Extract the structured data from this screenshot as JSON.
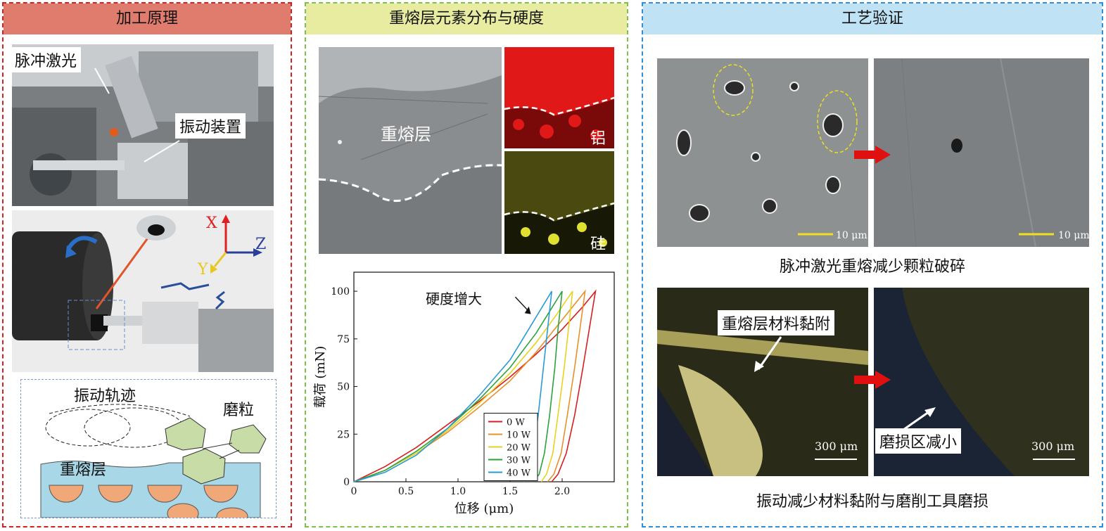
{
  "panels": {
    "left": {
      "title": "加工原理",
      "photo_labels": {
        "laser": "脉冲激光",
        "vibration_device": "振动装置"
      },
      "axes": {
        "x": "X",
        "y": "Y",
        "z": "Z"
      },
      "sketch": {
        "trajectory": "振动轨迹",
        "grain": "磨粒",
        "remelt_layer": "重熔层"
      }
    },
    "middle": {
      "title": "重熔层元素分布与硬度",
      "sem_label": "重熔层",
      "map_labels": {
        "aluminum": "铝",
        "silicon": "硅"
      },
      "chart_annotation": "硬度增大"
    },
    "right": {
      "title": "工艺验证",
      "caption_top": "脉冲激光重熔减少颗粒破碎",
      "caption_bottom": "振动减少材料黏附与磨削工具磨损",
      "scale_sem": "10 μm",
      "scale_optical": "300 μm",
      "label_adhesion": "重熔层材料黏附",
      "label_wear": "磨损区减小"
    }
  },
  "colors": {
    "red": "#d62020",
    "orange": "#e8902a",
    "yellow": "#e8d21e",
    "green": "#2ea23a",
    "blue": "#2a9ad6"
  },
  "chart_data": {
    "type": "line",
    "xlabel": "位移 (μm)",
    "ylabel": "载荷 (mN)",
    "xlim": [
      0,
      2.5
    ],
    "ylim": [
      0,
      110
    ],
    "xticks": [
      "0",
      "0.5",
      "1.0",
      "1.5",
      "2.0"
    ],
    "yticks": [
      "0",
      "25",
      "50",
      "75",
      "100"
    ],
    "legend_position": "bottom-right",
    "series": [
      {
        "name": "0 W",
        "color": "#d62020",
        "loading": [
          [
            0,
            0
          ],
          [
            0.3,
            8
          ],
          [
            0.6,
            18
          ],
          [
            0.9,
            30
          ],
          [
            1.2,
            42
          ],
          [
            1.5,
            55
          ],
          [
            1.75,
            67
          ],
          [
            2.0,
            80
          ],
          [
            2.2,
            92
          ],
          [
            2.32,
            100
          ]
        ],
        "unloading": [
          [
            2.32,
            100
          ],
          [
            2.26,
            80
          ],
          [
            2.2,
            60
          ],
          [
            2.12,
            35
          ],
          [
            2.04,
            15
          ],
          [
            1.96,
            4
          ],
          [
            1.9,
            0
          ]
        ]
      },
      {
        "name": "10 W",
        "color": "#e8902a",
        "loading": [
          [
            0,
            0
          ],
          [
            0.3,
            6
          ],
          [
            0.6,
            15
          ],
          [
            0.9,
            26
          ],
          [
            1.2,
            39
          ],
          [
            1.5,
            53
          ],
          [
            1.75,
            68
          ],
          [
            2.0,
            85
          ],
          [
            2.22,
            100
          ]
        ],
        "unloading": [
          [
            2.22,
            100
          ],
          [
            2.17,
            80
          ],
          [
            2.12,
            60
          ],
          [
            2.05,
            35
          ],
          [
            1.99,
            15
          ],
          [
            1.92,
            4
          ],
          [
            1.86,
            0
          ]
        ]
      },
      {
        "name": "20 W",
        "color": "#e8d21e",
        "loading": [
          [
            0,
            0
          ],
          [
            0.3,
            6
          ],
          [
            0.6,
            15
          ],
          [
            0.9,
            27
          ],
          [
            1.2,
            41
          ],
          [
            1.5,
            57
          ],
          [
            1.75,
            73
          ],
          [
            1.95,
            88
          ],
          [
            2.1,
            100
          ]
        ],
        "unloading": [
          [
            2.1,
            100
          ],
          [
            2.06,
            80
          ],
          [
            2.02,
            60
          ],
          [
            1.96,
            35
          ],
          [
            1.91,
            15
          ],
          [
            1.85,
            4
          ],
          [
            1.8,
            0
          ]
        ]
      },
      {
        "name": "30 W",
        "color": "#2ea23a",
        "loading": [
          [
            0,
            0
          ],
          [
            0.3,
            6
          ],
          [
            0.6,
            16
          ],
          [
            0.9,
            28
          ],
          [
            1.2,
            43
          ],
          [
            1.5,
            60
          ],
          [
            1.75,
            78
          ],
          [
            2.0,
            100
          ]
        ],
        "unloading": [
          [
            2.0,
            100
          ],
          [
            1.96,
            80
          ],
          [
            1.93,
            60
          ],
          [
            1.88,
            35
          ],
          [
            1.83,
            15
          ],
          [
            1.78,
            4
          ],
          [
            1.72,
            0
          ]
        ]
      },
      {
        "name": "40 W",
        "color": "#2a9ad6",
        "loading": [
          [
            0,
            0
          ],
          [
            0.3,
            5
          ],
          [
            0.6,
            14
          ],
          [
            0.9,
            28
          ],
          [
            1.2,
            45
          ],
          [
            1.5,
            64
          ],
          [
            1.7,
            82
          ],
          [
            1.9,
            100
          ]
        ],
        "unloading": [
          [
            1.9,
            100
          ],
          [
            1.86,
            80
          ],
          [
            1.82,
            60
          ],
          [
            1.77,
            35
          ],
          [
            1.72,
            15
          ],
          [
            1.67,
            4
          ],
          [
            1.63,
            0
          ]
        ]
      }
    ]
  }
}
